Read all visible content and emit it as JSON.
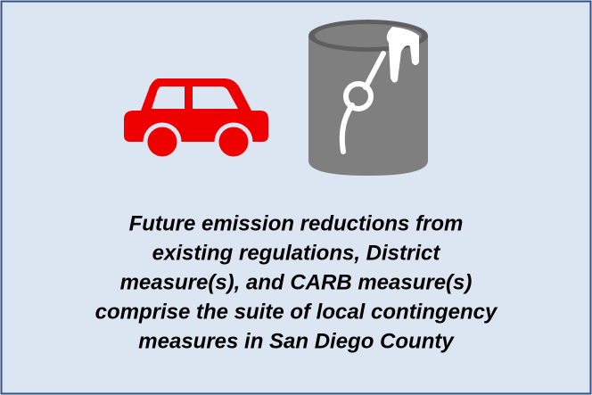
{
  "caption": {
    "lines": [
      "Future emission reductions from",
      "existing regulations, District",
      "measure(s), and CARB measure(s)",
      "comprise the suite of local contingency",
      "measures in San Diego County"
    ]
  }
}
